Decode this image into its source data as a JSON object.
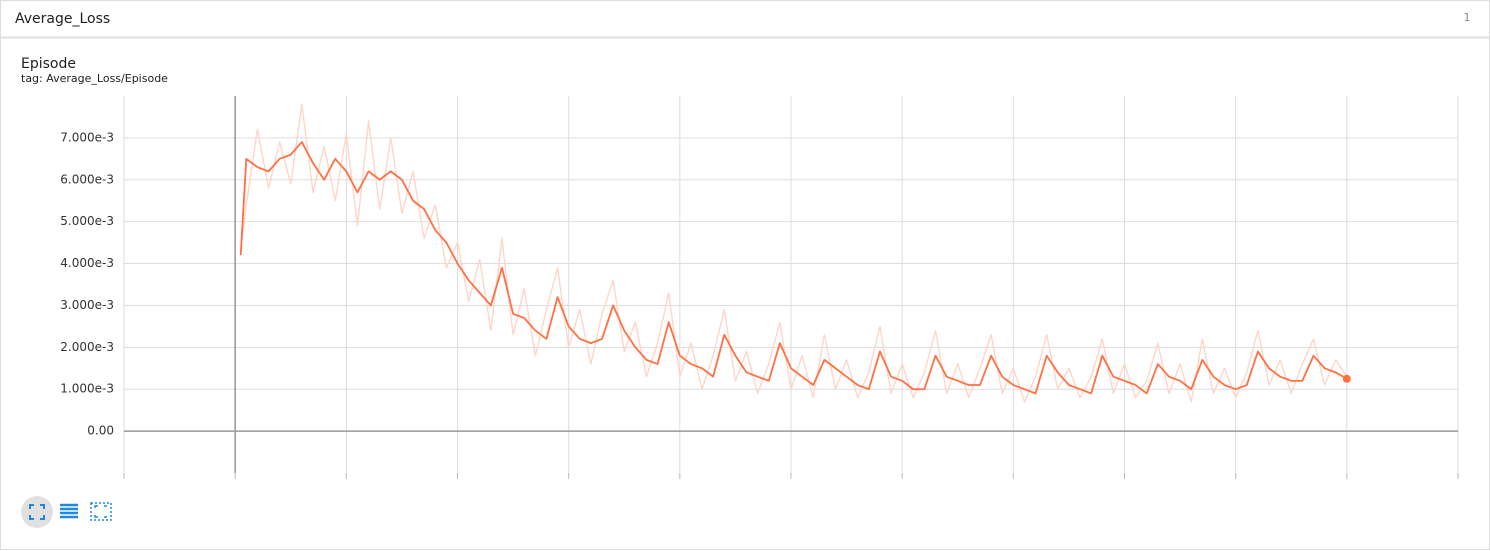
{
  "header": {
    "title": "Average_Loss",
    "count": 1
  },
  "chart_data": {
    "type": "line",
    "title": "Episode",
    "subtitle": "tag: Average_Loss/Episode",
    "x": [
      5,
      10,
      20,
      30,
      40,
      50,
      60,
      70,
      80,
      90,
      100,
      110,
      120,
      130,
      140,
      150,
      160,
      170,
      180,
      190,
      200,
      210,
      220,
      230,
      240,
      250,
      260,
      270,
      280,
      290,
      300,
      310,
      320,
      330,
      340,
      350,
      360,
      370,
      380,
      390,
      400,
      410,
      420,
      430,
      440,
      450,
      460,
      470,
      480,
      490,
      500,
      510,
      520,
      530,
      540,
      550,
      560,
      570,
      580,
      590,
      600,
      610,
      620,
      630,
      640,
      650,
      660,
      670,
      680,
      690,
      700,
      710,
      720,
      730,
      740,
      750,
      760,
      770,
      780,
      790,
      800,
      810,
      820,
      830,
      840,
      850,
      860,
      870,
      880,
      890,
      900,
      910,
      920,
      930,
      940,
      950,
      960,
      970,
      980,
      990,
      1000
    ],
    "series": [
      {
        "color": "#ffd5c7",
        "values": [
          0.0043,
          0.0054,
          0.0072,
          0.0058,
          0.0069,
          0.0059,
          0.0078,
          0.0057,
          0.0068,
          0.0055,
          0.0071,
          0.0049,
          0.0074,
          0.0053,
          0.007,
          0.0052,
          0.0062,
          0.0046,
          0.0054,
          0.0039,
          0.0045,
          0.0031,
          0.0041,
          0.0024,
          0.0046,
          0.0023,
          0.0034,
          0.0018,
          0.0029,
          0.0039,
          0.002,
          0.0029,
          0.0016,
          0.0028,
          0.0036,
          0.0019,
          0.0026,
          0.0013,
          0.0021,
          0.0033,
          0.0013,
          0.0021,
          0.001,
          0.0018,
          0.0029,
          0.0012,
          0.0019,
          0.0009,
          0.0016,
          0.0026,
          0.001,
          0.0018,
          0.0008,
          0.0023,
          0.001,
          0.0017,
          0.0008,
          0.0014,
          0.0025,
          0.0009,
          0.0016,
          0.0008,
          0.0014,
          0.0024,
          0.0009,
          0.0016,
          0.0008,
          0.0015,
          0.0023,
          0.0009,
          0.0015,
          0.0007,
          0.0013,
          0.0023,
          0.001,
          0.0015,
          0.0008,
          0.0013,
          0.0022,
          0.0009,
          0.0016,
          0.0008,
          0.0012,
          0.0021,
          0.0009,
          0.0016,
          0.0007,
          0.0022,
          0.0009,
          0.0015,
          0.0008,
          0.0014,
          0.0024,
          0.0011,
          0.0017,
          0.0009,
          0.0016,
          0.0022,
          0.0011,
          0.0017,
          0.0013
        ]
      },
      {
        "color": "#ff7043",
        "values": [
          0.0042,
          0.0065,
          0.0063,
          0.0062,
          0.0065,
          0.0066,
          0.0069,
          0.0064,
          0.006,
          0.0065,
          0.0062,
          0.0057,
          0.0062,
          0.006,
          0.0062,
          0.006,
          0.0055,
          0.0053,
          0.0048,
          0.0045,
          0.004,
          0.0036,
          0.0033,
          0.003,
          0.0039,
          0.0028,
          0.0027,
          0.0024,
          0.0022,
          0.0032,
          0.0025,
          0.0022,
          0.0021,
          0.0022,
          0.003,
          0.0024,
          0.002,
          0.0017,
          0.0016,
          0.0026,
          0.0018,
          0.0016,
          0.0015,
          0.0013,
          0.0023,
          0.0018,
          0.0014,
          0.0013,
          0.0012,
          0.0021,
          0.0015,
          0.0013,
          0.0011,
          0.0017,
          0.0015,
          0.0013,
          0.0011,
          0.001,
          0.0019,
          0.0013,
          0.0012,
          0.001,
          0.001,
          0.0018,
          0.0013,
          0.0012,
          0.0011,
          0.0011,
          0.0018,
          0.0013,
          0.0011,
          0.001,
          0.0009,
          0.0018,
          0.0014,
          0.0011,
          0.001,
          0.0009,
          0.0018,
          0.0013,
          0.0012,
          0.0011,
          0.0009,
          0.0016,
          0.0013,
          0.0012,
          0.001,
          0.0017,
          0.0013,
          0.0011,
          0.001,
          0.0011,
          0.0019,
          0.0015,
          0.0013,
          0.0012,
          0.0012,
          0.0018,
          0.0015,
          0.0014,
          0.00125
        ]
      }
    ],
    "xlim": [
      -100,
      1100
    ],
    "xticks": [
      -100,
      0,
      100,
      200,
      300,
      400,
      500,
      600,
      700,
      800,
      900,
      1000,
      1100
    ],
    "ylim": [
      -0.001,
      0.008
    ],
    "yticks": [
      {
        "value": 0,
        "label": "0.00"
      },
      {
        "value": 0.001,
        "label": "1.000e-3"
      },
      {
        "value": 0.002,
        "label": "2.000e-3"
      },
      {
        "value": 0.003,
        "label": "3.000e-3"
      },
      {
        "value": 0.004,
        "label": "4.000e-3"
      },
      {
        "value": 0.005,
        "label": "5.000e-3"
      },
      {
        "value": 0.006,
        "label": "6.000e-3"
      },
      {
        "value": 0.007,
        "label": "7.000e-3"
      }
    ],
    "grid": true
  }
}
